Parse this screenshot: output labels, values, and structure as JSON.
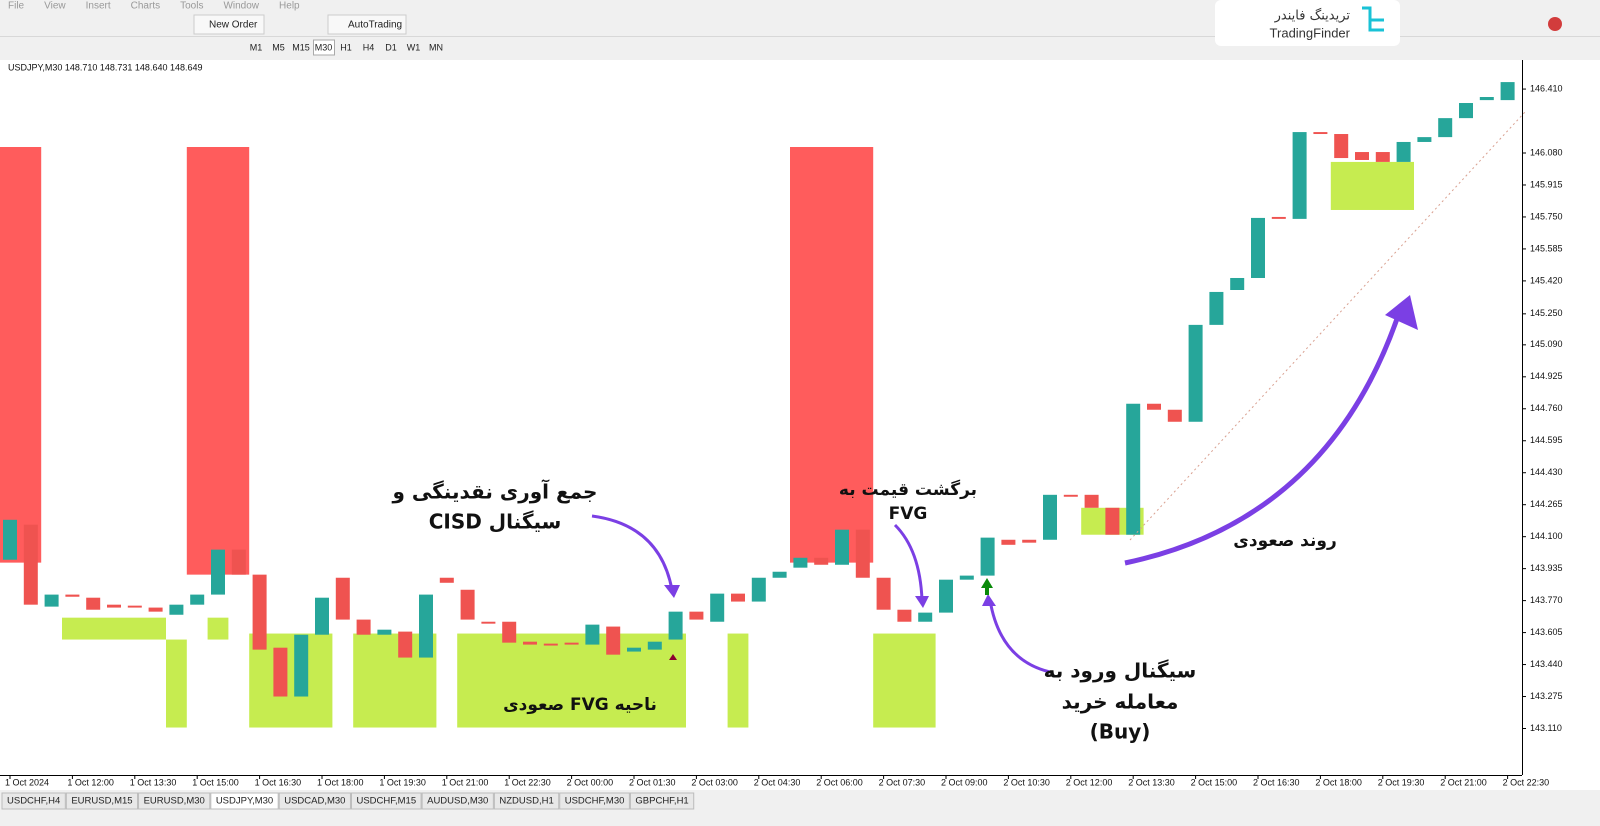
{
  "window": {
    "menu": [
      "File",
      "View",
      "Insert",
      "Charts",
      "Tools",
      "Window",
      "Help"
    ],
    "toolbar": {
      "new_order": "New Order",
      "auto_trading": "AutoTrading",
      "timeframes": [
        "M1",
        "M5",
        "M15",
        "M30",
        "H1",
        "H4",
        "D1",
        "W1",
        "MN"
      ]
    },
    "logo": {
      "persian": "تریدینگ فایندر",
      "latin": "TradingFinder"
    },
    "tabs": [
      "USDCHF,H4",
      "EURUSD,M15",
      "EURUSD,M30",
      "USDJPY,M30",
      "USDCAD,M30",
      "USDCHF,M15",
      "AUDUSD,M30",
      "NZDUSD,H1",
      "USDCHF,M30",
      "GBPCHF,H1"
    ],
    "active_tab": 3
  },
  "chart_data": {
    "type": "candlestick",
    "title": "USDJPY,M30  148.710 148.731 148.640 148.649",
    "up_color": "#26a69a",
    "down_color": "#ef5350",
    "open": [
      143.981,
      144.162,
      143.739,
      143.801,
      143.785,
      143.749,
      143.744,
      143.734,
      143.697,
      143.749,
      143.801,
      144.033,
      143.904,
      143.527,
      143.275,
      143.594,
      143.888,
      143.672,
      143.594,
      143.61,
      143.476,
      143.888,
      143.826,
      143.661,
      143.661,
      143.558,
      143.548,
      143.553,
      143.543,
      143.636,
      143.507,
      143.517,
      143.569,
      143.713,
      143.661,
      143.806,
      143.765,
      143.888,
      143.94,
      143.991,
      143.955,
      144.136,
      143.888,
      143.723,
      143.661,
      143.708,
      143.878,
      143.899,
      144.084,
      144.084,
      144.084,
      144.316,
      144.316,
      144.249,
      144.11,
      144.786,
      144.755,
      144.693,
      145.193,
      145.373,
      145.435,
      145.75,
      145.74,
      146.188,
      146.178,
      146.085,
      146.085,
      146.034,
      146.137,
      146.162,
      146.26,
      146.353,
      146.353
    ],
    "close": [
      144.187,
      143.749,
      143.801,
      143.79,
      143.723,
      143.734,
      143.734,
      143.713,
      143.749,
      143.801,
      144.033,
      143.904,
      143.517,
      143.275,
      143.594,
      143.785,
      143.672,
      143.594,
      143.62,
      143.476,
      143.801,
      143.862,
      143.672,
      143.651,
      143.553,
      143.543,
      143.538,
      143.543,
      143.646,
      143.491,
      143.527,
      143.558,
      143.713,
      143.672,
      143.806,
      143.765,
      143.888,
      143.919,
      143.991,
      143.955,
      144.136,
      143.888,
      143.723,
      143.661,
      143.708,
      143.878,
      143.899,
      144.095,
      144.058,
      144.069,
      144.316,
      144.306,
      144.249,
      144.11,
      144.786,
      144.755,
      144.693,
      145.193,
      145.363,
      145.435,
      145.745,
      145.74,
      146.188,
      146.178,
      146.054,
      146.044,
      146.034,
      146.137,
      146.162,
      146.26,
      146.338,
      146.369,
      146.446
    ],
    "zones": [
      {
        "start": 0,
        "end": 1,
        "high": 146.111,
        "low": 143.966,
        "color": "#ff5c5c"
      },
      {
        "start": 9,
        "end": 11,
        "high": 146.111,
        "low": 143.904,
        "color": "#ff5c5c"
      },
      {
        "start": 38,
        "end": 41,
        "high": 146.111,
        "low": 143.966,
        "color": "#ff5c5c"
      },
      {
        "start": 3,
        "end": 7,
        "high": 143.682,
        "low": 143.569,
        "color": "#c6ec50"
      },
      {
        "start": 8,
        "end": 8,
        "high": 143.569,
        "low": 143.115,
        "color": "#c6ec50"
      },
      {
        "start": 10,
        "end": 10,
        "high": 143.682,
        "low": 143.569,
        "color": "#c6ec50"
      },
      {
        "start": 12,
        "end": 15,
        "high": 143.6,
        "low": 143.115,
        "color": "#c6ec50"
      },
      {
        "start": 17,
        "end": 20,
        "high": 143.6,
        "low": 143.115,
        "color": "#c6ec50"
      },
      {
        "start": 22,
        "end": 32,
        "high": 143.6,
        "low": 143.115,
        "color": "#c6ec50"
      },
      {
        "start": 35,
        "end": 35,
        "high": 143.6,
        "low": 143.115,
        "color": "#c6ec50"
      },
      {
        "start": 42,
        "end": 44,
        "high": 143.6,
        "low": 143.115,
        "color": "#c6ec50"
      },
      {
        "start": 52,
        "end": 54,
        "high": 144.249,
        "low": 144.11,
        "color": "#c6ec50"
      },
      {
        "start": 64,
        "end": 67,
        "high": 146.034,
        "low": 145.786,
        "color": "#c6ec50"
      }
    ],
    "ylim": [
      142.87,
      146.56
    ],
    "yticks": [
      {
        "value": 146.41,
        "label": "146.410"
      },
      {
        "value": 146.08,
        "label": "146.080"
      },
      {
        "value": 145.915,
        "label": "145.915"
      },
      {
        "value": 145.75,
        "label": "145.750"
      },
      {
        "value": 145.585,
        "label": "145.585"
      },
      {
        "value": 145.42,
        "label": "145.420"
      },
      {
        "value": 145.25,
        "label": "145.250"
      },
      {
        "value": 145.09,
        "label": "145.090"
      },
      {
        "value": 144.925,
        "label": "144.925"
      },
      {
        "value": 144.76,
        "label": "144.760"
      },
      {
        "value": 144.595,
        "label": "144.595"
      },
      {
        "value": 144.43,
        "label": "144.430"
      },
      {
        "value": 144.265,
        "label": "144.265"
      },
      {
        "value": 144.1,
        "label": "144.100"
      },
      {
        "value": 143.935,
        "label": "143.935"
      },
      {
        "value": 143.77,
        "label": "143.770"
      },
      {
        "value": 143.605,
        "label": "143.605"
      },
      {
        "value": 143.44,
        "label": "143.440"
      },
      {
        "value": 143.275,
        "label": "143.275"
      },
      {
        "value": 143.11,
        "label": "143.110"
      }
    ],
    "time_labels": [
      "1 Oct 2024",
      "1 Oct 12:00",
      "1 Oct 13:30",
      "1 Oct 15:00",
      "1 Oct 16:30",
      "1 Oct 18:00",
      "1 Oct 19:30",
      "1 Oct 21:00",
      "1 Oct 22:30",
      "2 Oct 00:00",
      "2 Oct 01:30",
      "2 Oct 03:00",
      "2 Oct 04:30",
      "2 Oct 06:00",
      "2 Oct 07:30",
      "2 Oct 09:00",
      "2 Oct 10:30",
      "2 Oct 12:00",
      "2 Oct 13:30",
      "2 Oct 15:00",
      "2 Oct 16:30",
      "2 Oct 18:00",
      "2 Oct 19:30",
      "2 Oct 21:00",
      "2 Oct 22:30"
    ],
    "annotations": {
      "cisd": [
        "جمع آوری نقدینگی و",
        "سیگنال CISD"
      ],
      "fvg_zone": "ناحیه FVG صعودی",
      "return": [
        "برگشت قیمت به",
        "FVG"
      ],
      "entry": [
        "سیگنال ورود به",
        "معامله خرید",
        "(Buy)"
      ],
      "trend": "روند صعودی"
    }
  }
}
